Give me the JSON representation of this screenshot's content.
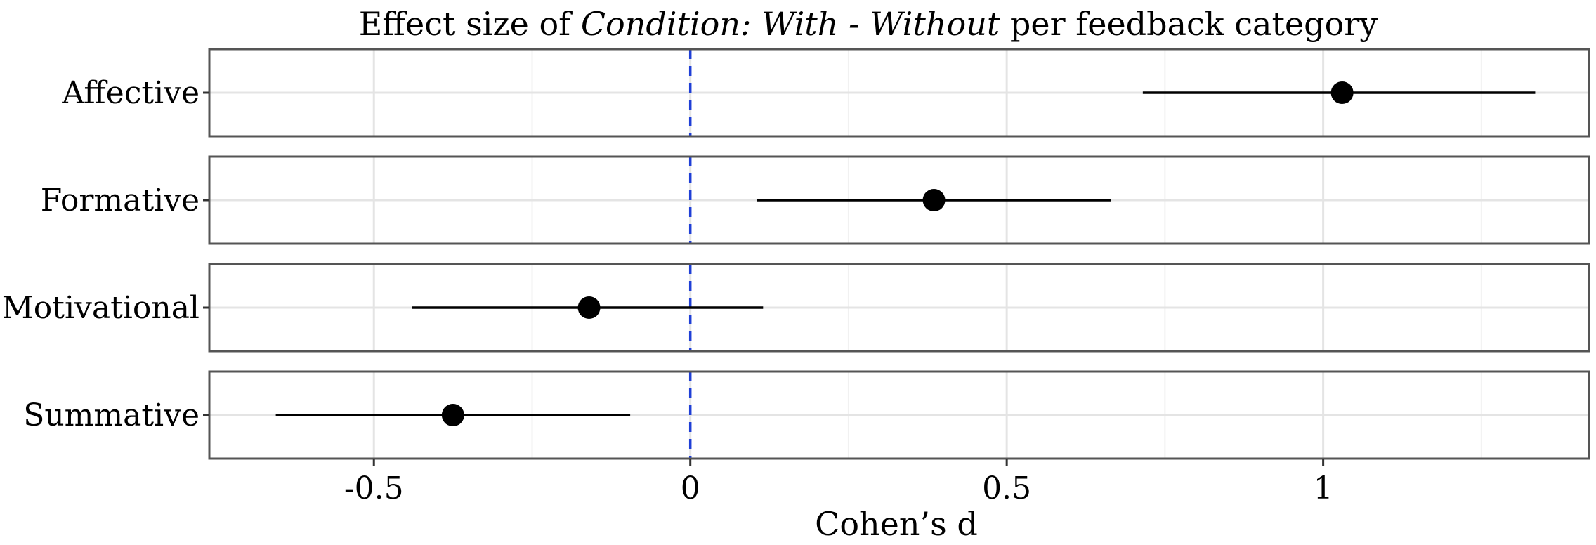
{
  "chart_data": {
    "type": "forest",
    "title": {
      "prefix": "Effect size of ",
      "italic": "Condition: With - Without",
      "suffix": " per feedback category"
    },
    "xlabel": "Cohen’s d",
    "ylabel": "",
    "xlim": [
      -0.76,
      1.42
    ],
    "x_ticks": [
      -0.5,
      0,
      0.5,
      1
    ],
    "x_tick_labels": [
      "-0.5",
      "0",
      "0.5",
      "1"
    ],
    "minor_ticks": [
      -0.25,
      0.25,
      0.75,
      1.25
    ],
    "reference_line": {
      "x": 0,
      "color": "#1f3fd6",
      "style": "dashed"
    },
    "grid": true,
    "categories": [
      "Affective",
      "Formative",
      "Motivational",
      "Summative"
    ],
    "estimates": [
      1.03,
      0.385,
      -0.16,
      -0.375
    ],
    "ci_low": [
      0.715,
      0.105,
      -0.44,
      -0.655
    ],
    "ci_high": [
      1.335,
      0.665,
      0.115,
      -0.095
    ],
    "colors": {
      "point": "#000000",
      "panel_border": "#555555",
      "grid_major": "#e4e4e4",
      "grid_minor": "#f1f1f1"
    }
  }
}
